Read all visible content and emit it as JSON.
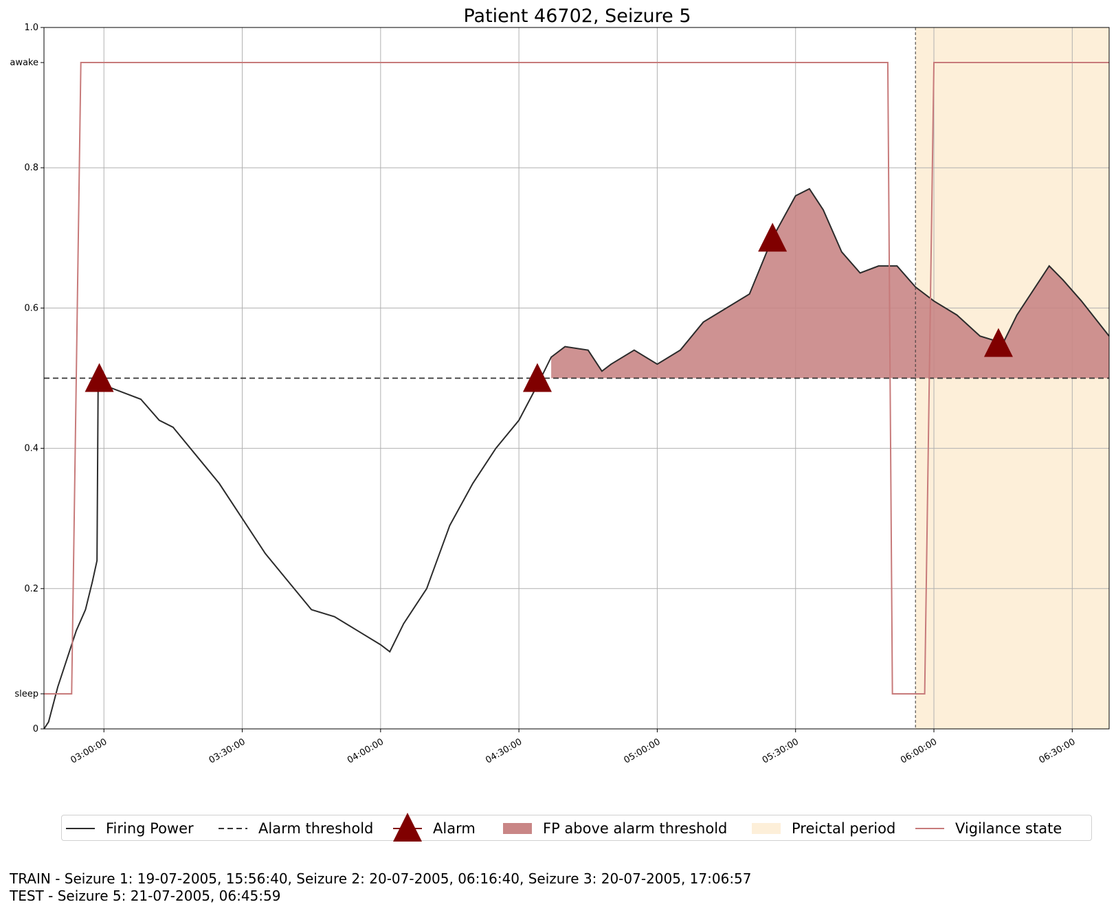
{
  "chart_data": {
    "type": "line",
    "title": "Patient 46702, Seizure 5",
    "xlabel": "",
    "ylabel": "",
    "x_range": [
      "02:47:00",
      "06:38:00"
    ],
    "ylim": [
      0,
      1.0
    ],
    "y_ticks": [
      {
        "value": 0,
        "label": "0"
      },
      {
        "value": 0.05,
        "label": "sleep"
      },
      {
        "value": 0.2,
        "label": "0.2"
      },
      {
        "value": 0.4,
        "label": "0.4"
      },
      {
        "value": 0.6,
        "label": "0.6"
      },
      {
        "value": 0.8,
        "label": "0.8"
      },
      {
        "value": 0.95,
        "label": "awake"
      },
      {
        "value": 1.0,
        "label": "1.0"
      }
    ],
    "x_ticks": [
      "03:00:00",
      "03:30:00",
      "04:00:00",
      "04:30:00",
      "05:00:00",
      "05:30:00",
      "06:00:00",
      "06:30:00"
    ],
    "grid": true,
    "alarm_threshold": 0.5,
    "preictal_start": "05:56:00",
    "vertical_marker": "05:56:00",
    "firing_power": {
      "name": "Firing Power",
      "points": [
        [
          "02:47:00",
          0.0
        ],
        [
          "02:48:00",
          0.01
        ],
        [
          "02:50:00",
          0.06
        ],
        [
          "02:52:00",
          0.1
        ],
        [
          "02:54:00",
          0.14
        ],
        [
          "02:56:00",
          0.17
        ],
        [
          "02:57:30",
          0.21
        ],
        [
          "02:58:30",
          0.24
        ],
        [
          "02:58:45",
          0.5
        ],
        [
          "02:59:30",
          0.5
        ],
        [
          "03:00:00",
          0.49
        ],
        [
          "03:04:00",
          0.48
        ],
        [
          "03:08:00",
          0.47
        ],
        [
          "03:12:00",
          0.44
        ],
        [
          "03:15:00",
          0.43
        ],
        [
          "03:20:00",
          0.39
        ],
        [
          "03:25:00",
          0.35
        ],
        [
          "03:30:00",
          0.3
        ],
        [
          "03:35:00",
          0.25
        ],
        [
          "03:40:00",
          0.21
        ],
        [
          "03:45:00",
          0.17
        ],
        [
          "03:50:00",
          0.16
        ],
        [
          "03:55:00",
          0.14
        ],
        [
          "04:00:00",
          0.12
        ],
        [
          "04:02:00",
          0.11
        ],
        [
          "04:05:00",
          0.15
        ],
        [
          "04:10:00",
          0.2
        ],
        [
          "04:15:00",
          0.29
        ],
        [
          "04:20:00",
          0.35
        ],
        [
          "04:25:00",
          0.4
        ],
        [
          "04:30:00",
          0.44
        ],
        [
          "04:34:00",
          0.49
        ],
        [
          "04:37:00",
          0.53
        ],
        [
          "04:40:00",
          0.545
        ],
        [
          "04:45:00",
          0.54
        ],
        [
          "04:48:00",
          0.51
        ],
        [
          "04:50:00",
          0.52
        ],
        [
          "04:55:00",
          0.54
        ],
        [
          "05:00:00",
          0.52
        ],
        [
          "05:05:00",
          0.54
        ],
        [
          "05:10:00",
          0.58
        ],
        [
          "05:15:00",
          0.6
        ],
        [
          "05:20:00",
          0.62
        ],
        [
          "05:25:00",
          0.7
        ],
        [
          "05:30:00",
          0.76
        ],
        [
          "05:33:00",
          0.77
        ],
        [
          "05:36:00",
          0.74
        ],
        [
          "05:40:00",
          0.68
        ],
        [
          "05:44:00",
          0.65
        ],
        [
          "05:48:00",
          0.66
        ],
        [
          "05:52:00",
          0.66
        ],
        [
          "05:56:00",
          0.63
        ],
        [
          "06:00:00",
          0.61
        ],
        [
          "06:05:00",
          0.59
        ],
        [
          "06:10:00",
          0.56
        ],
        [
          "06:15:00",
          0.55
        ],
        [
          "06:18:00",
          0.59
        ],
        [
          "06:25:00",
          0.66
        ],
        [
          "06:28:00",
          0.64
        ],
        [
          "06:32:00",
          0.61
        ],
        [
          "06:38:00",
          0.56
        ]
      ]
    },
    "gaps": [
      [
        "06:18:00",
        "06:25:00"
      ]
    ],
    "alarms": [
      {
        "x": "02:59:00",
        "y": 0.5
      },
      {
        "x": "04:34:00",
        "y": 0.5
      },
      {
        "x": "05:25:00",
        "y": 0.7
      },
      {
        "x": "06:14:00",
        "y": 0.55
      }
    ],
    "vigilance_state": {
      "name": "Vigilance state",
      "points": [
        [
          "02:47:00",
          0.05
        ],
        [
          "02:53:00",
          0.05
        ],
        [
          "02:55:00",
          0.95
        ],
        [
          "05:50:00",
          0.95
        ],
        [
          "05:51:00",
          0.05
        ],
        [
          "05:58:00",
          0.05
        ],
        [
          "06:00:00",
          0.95
        ],
        [
          "06:38:00",
          0.95
        ]
      ]
    }
  },
  "legend": {
    "firing_power": "Firing Power",
    "alarm_threshold": "Alarm threshold",
    "alarm": "Alarm",
    "fp_above": "FP above alarm threshold",
    "preictal": "Preictal period",
    "vigilance": "Vigilance state"
  },
  "footer": {
    "train": "TRAIN - Seizure 1: 19-07-2005, 15:56:40, Seizure 2: 20-07-2005, 06:16:40, Seizure 3: 20-07-2005, 17:06:57",
    "test": "TEST - Seizure 5: 21-07-2005, 06:45:59"
  },
  "colors": {
    "firing_power": "#2b2b2b",
    "alarm": "#800000",
    "fp_above_fill": "#c98686",
    "preictal_fill": "#fdefd9",
    "vigilance": "#c77a7a",
    "grid": "#b0b0b0"
  }
}
